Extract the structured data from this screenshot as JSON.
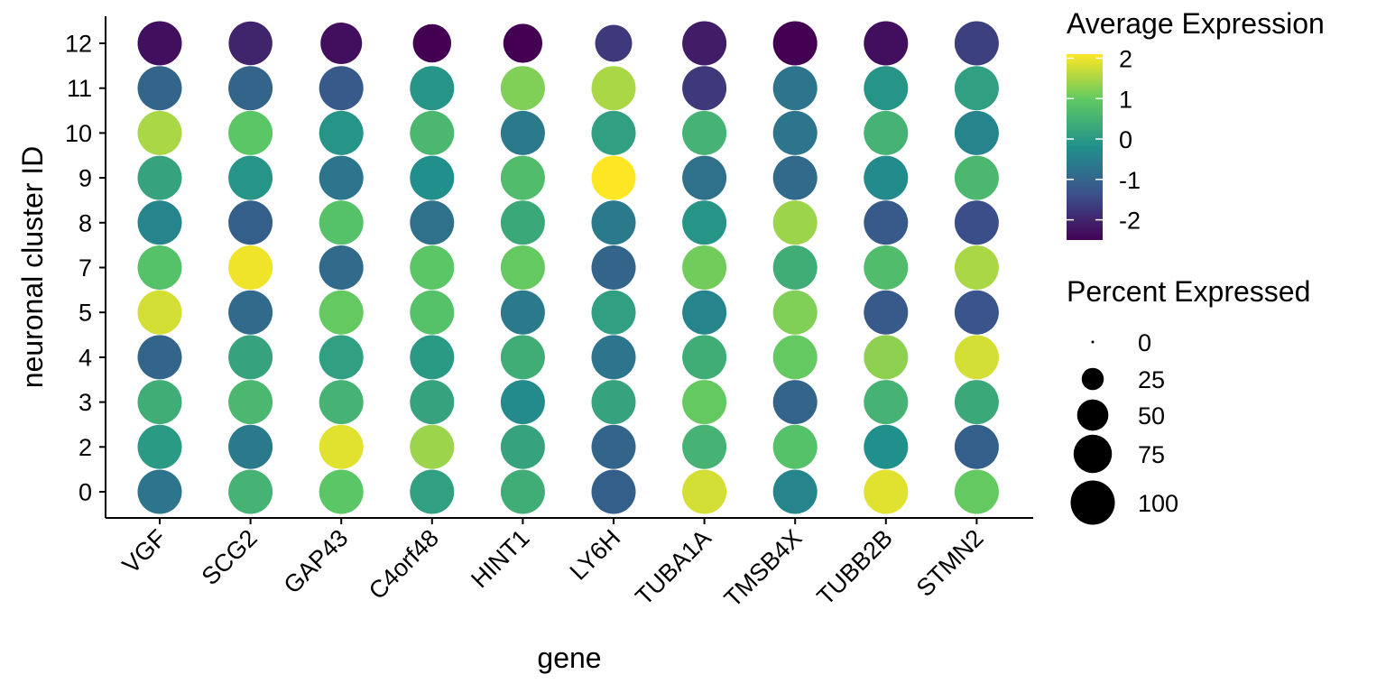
{
  "chart_data": {
    "type": "dot",
    "xlabel": "gene",
    "ylabel": "neuronal cluster ID",
    "genes": [
      "VGF",
      "SCG2",
      "GAP43",
      "C4orf48",
      "HINT1",
      "LY6H",
      "TUBA1A",
      "TMSB4X",
      "TUBB2B",
      "STMN2"
    ],
    "clusters": [
      "0",
      "2",
      "3",
      "4",
      "5",
      "7",
      "8",
      "9",
      "10",
      "11",
      "12"
    ],
    "avg_expression": [
      [
        -0.7,
        0.5,
        0.9,
        0.1,
        0.4,
        -1.1,
        1.8,
        -0.4,
        1.9,
        1.0
      ],
      [
        0.0,
        -0.6,
        1.9,
        1.4,
        0.2,
        -1.0,
        0.5,
        0.8,
        -0.2,
        -1.1
      ],
      [
        0.4,
        0.6,
        0.5,
        0.2,
        -0.3,
        0.2,
        1.0,
        -1.0,
        0.5,
        0.3
      ],
      [
        -1.0,
        0.2,
        0.1,
        0.0,
        0.4,
        -0.7,
        0.4,
        1.0,
        1.3,
        1.8
      ],
      [
        1.8,
        -0.9,
        1.0,
        0.8,
        -0.6,
        0.1,
        -0.4,
        1.2,
        -1.2,
        -1.3
      ],
      [
        0.8,
        2.0,
        -0.9,
        0.9,
        1.0,
        -1.0,
        1.1,
        0.4,
        0.7,
        1.5
      ],
      [
        -0.4,
        -1.1,
        0.8,
        -0.8,
        0.3,
        -0.6,
        -0.1,
        1.4,
        -1.2,
        -1.4
      ],
      [
        0.2,
        -0.1,
        -0.7,
        -0.2,
        0.7,
        2.1,
        -0.8,
        -0.9,
        -0.3,
        0.6
      ],
      [
        1.5,
        0.9,
        -0.1,
        0.6,
        -0.6,
        0.1,
        0.5,
        -0.7,
        0.5,
        -0.4
      ],
      [
        -1.0,
        -1.0,
        -1.2,
        -0.1,
        1.2,
        1.5,
        -1.7,
        -0.7,
        -0.1,
        0.1
      ],
      [
        -2.3,
        -2.0,
        -2.3,
        -2.5,
        -2.5,
        -1.7,
        -2.1,
        -2.5,
        -2.3,
        -1.6
      ]
    ],
    "pct_expressed": [
      [
        100,
        100,
        100,
        100,
        100,
        100,
        100,
        100,
        100,
        100
      ],
      [
        100,
        100,
        100,
        100,
        100,
        100,
        100,
        100,
        100,
        100
      ],
      [
        100,
        100,
        100,
        100,
        100,
        100,
        100,
        100,
        100,
        100
      ],
      [
        100,
        100,
        100,
        100,
        100,
        100,
        100,
        100,
        100,
        100
      ],
      [
        100,
        100,
        100,
        100,
        100,
        100,
        100,
        100,
        100,
        100
      ],
      [
        100,
        100,
        100,
        100,
        100,
        100,
        100,
        100,
        100,
        100
      ],
      [
        100,
        100,
        100,
        100,
        100,
        100,
        100,
        100,
        100,
        100
      ],
      [
        100,
        100,
        100,
        100,
        100,
        100,
        100,
        100,
        100,
        100
      ],
      [
        100,
        100,
        100,
        100,
        100,
        100,
        100,
        100,
        100,
        100
      ],
      [
        100,
        100,
        100,
        100,
        100,
        100,
        100,
        100,
        100,
        100
      ],
      [
        100,
        98,
        88,
        75,
        78,
        70,
        100,
        100,
        100,
        100
      ]
    ],
    "color_legend": {
      "title": "Average Expression",
      "breaks": [
        "2",
        "1",
        "0",
        "-1",
        "-2"
      ],
      "break_values": [
        2,
        1,
        0,
        -1,
        -2
      ],
      "range": [
        -2.5,
        2.1
      ],
      "palette": [
        "#440154",
        "#3B528B",
        "#21908C",
        "#5DC863",
        "#FDE725"
      ]
    },
    "size_legend": {
      "title": "Percent Expressed",
      "labels": [
        "0",
        "25",
        "50",
        "75",
        "100"
      ],
      "values": [
        0,
        25,
        50,
        75,
        100
      ]
    },
    "legend_position": "right",
    "grid": false
  }
}
